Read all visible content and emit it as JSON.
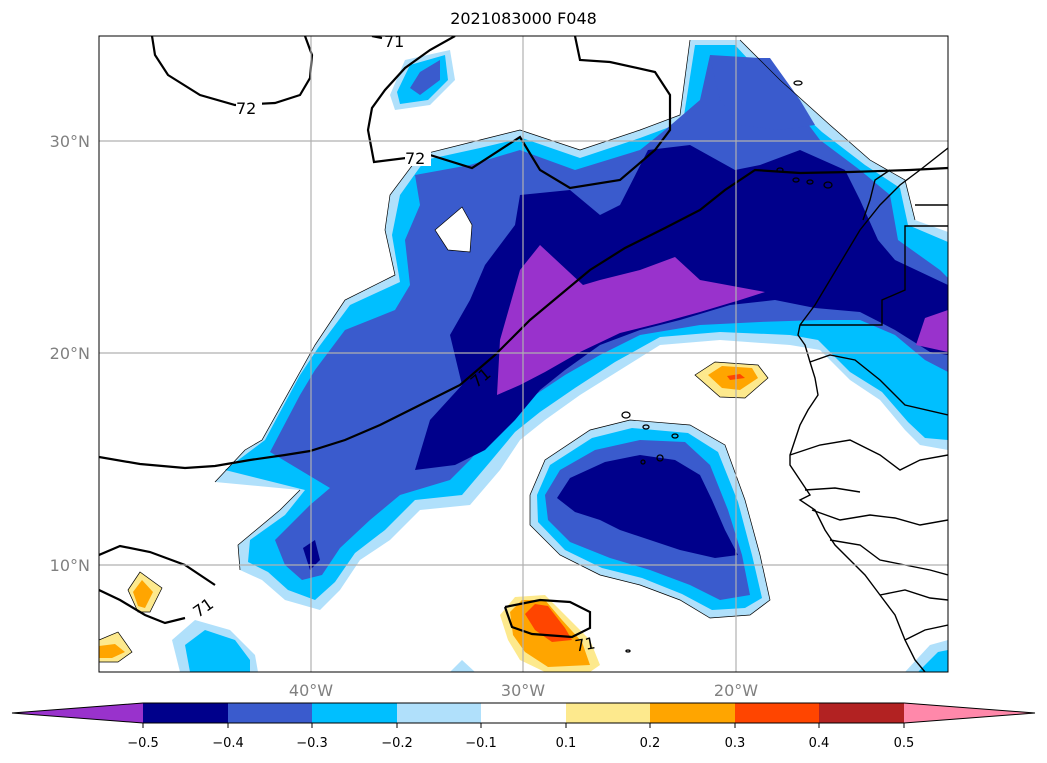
{
  "title": "2021083000 F048",
  "colors": {
    "lt_neg05": "#9932cc",
    "neg05_neg04": "#00008b",
    "neg04_neg03": "#3a5bcd",
    "neg03_neg02": "#00bfff",
    "neg02_neg01": "#b0e0fb",
    "neg01_01": "#ffffff",
    "p01_p02": "#fde98d",
    "p02_p03": "#ffa500",
    "p03_p04": "#ff4500",
    "p04_p05": "#b22222",
    "gt_p05": "#ff88aa"
  },
  "map": {
    "lon_range": [
      -50,
      -10
    ],
    "lat_range": [
      5,
      35
    ],
    "lat_ticks": [
      "30°N",
      "20°N",
      "10°N"
    ],
    "lon_ticks": [
      "40°W",
      "30°W",
      "20°W"
    ],
    "contour_labels": [
      "71",
      "72",
      "72",
      "71",
      "71",
      "71"
    ]
  },
  "colorbar": {
    "ticks": [
      "−0.5",
      "−0.4",
      "−0.3",
      "−0.2",
      "−0.1",
      "0.1",
      "0.2",
      "0.3",
      "0.4",
      "0.5"
    ]
  }
}
